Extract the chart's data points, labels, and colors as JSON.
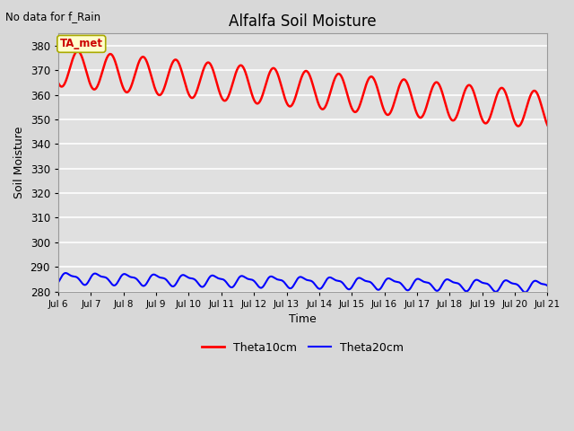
{
  "title": "Alfalfa Soil Moisture",
  "xlabel": "Time",
  "ylabel": "Soil Moisture",
  "top_left_text": "No data for f_Rain",
  "legend_label1": "Theta10cm",
  "legend_label2": "Theta20cm",
  "legend_color1": "#ff0000",
  "legend_color2": "#0000ff",
  "annotation_text": "TA_met",
  "annotation_box_color": "#ffffcc",
  "annotation_border_color": "#aaaa00",
  "annotation_text_color": "#cc0000",
  "ylim": [
    280,
    385
  ],
  "yticks": [
    280,
    290,
    300,
    310,
    320,
    330,
    340,
    350,
    360,
    370,
    380
  ],
  "background_color": "#d8d8d8",
  "plot_bg_color": "#e0e0e0",
  "grid_color": "#ffffff",
  "xtick_labels": [
    "Jul 6",
    "Jul 7",
    "Jul 8",
    "Jul 9",
    "Jul 10",
    "Jul 11",
    "Jul 12",
    "Jul 13",
    "Jul 14",
    "Jul 15",
    "Jul 16",
    "Jul 17",
    "Jul 18",
    "Jul 19",
    "Jul 20",
    "Jul 21"
  ],
  "theta10_color": "#ff0000",
  "theta20_color": "#0000ff",
  "theta10_linewidth": 1.8,
  "theta20_linewidth": 1.5,
  "figwidth": 6.4,
  "figheight": 4.8,
  "dpi": 100
}
